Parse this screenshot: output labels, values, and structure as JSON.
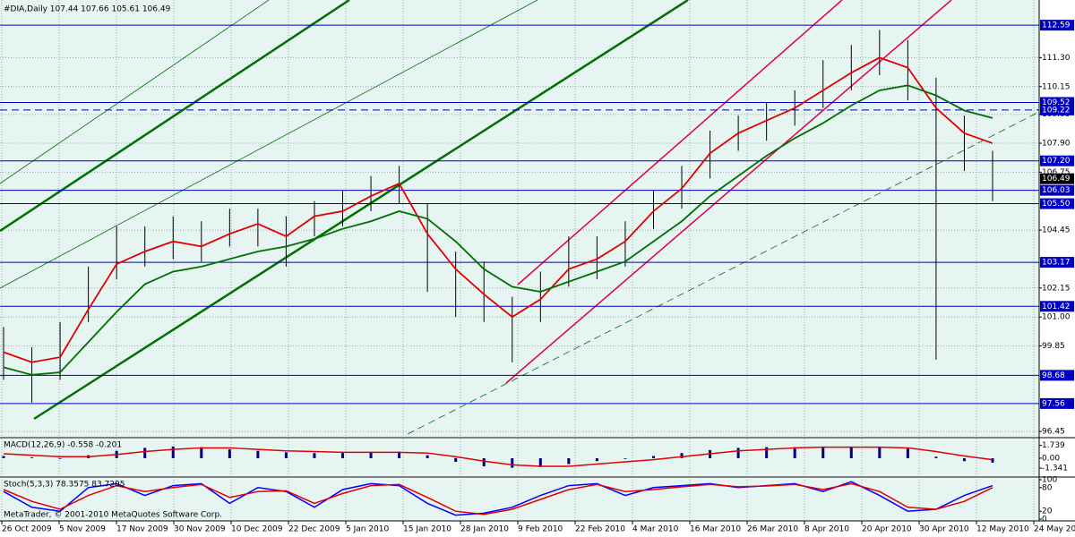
{
  "window": {
    "title": "#DIA,Daily  107.44 107.66 105.61 106.49",
    "copyright": "MetaTrader, © 2001-2010 MetaQuotes Software Corp."
  },
  "chart_data": [
    {
      "type": "ohlc",
      "ylim": [
        96.24,
        113.59
      ],
      "yticks": [
        96.45,
        99.85,
        {
          "value": 101,
          "label": "101.00"
        },
        102.15,
        104.45,
        106.75,
        {
          "value": 107.9,
          "label": "107.90"
        },
        109.05,
        110.15,
        {
          "value": 111.3,
          "label": "111.30"
        }
      ],
      "grid": true,
      "x_labels": [
        "26 Oct 2009",
        "5 Nov 2009",
        "17 Nov 2009",
        "30 Nov 2009",
        "10 Dec 2009",
        "22 Dec 2009",
        "5 Jan 2010",
        "15 Jan 2010",
        "28 Jan 2010",
        "9 Feb 2010",
        "22 Feb 2010",
        "4 Mar 2010",
        "16 Mar 2010",
        "26 Mar 2010",
        "8 Apr 2010",
        "20 Apr 2010",
        "30 Apr 2010",
        "12 May 2010",
        "24 May 2010"
      ],
      "bar_color": "#000000",
      "high": [
        100.6,
        99.8,
        100.8,
        103.0,
        104.6,
        104.6,
        105.0,
        104.8,
        105.3,
        105.3,
        105.0,
        105.6,
        106.0,
        106.6,
        107.0,
        105.5,
        103.6,
        103.2,
        101.8,
        102.8,
        104.2,
        104.2,
        104.8,
        106.0,
        107.0,
        108.4,
        109.0,
        109.5,
        110.0,
        111.2,
        111.8,
        112.4,
        112.0,
        110.5,
        109.0,
        107.6
      ],
      "low": [
        98.5,
        97.6,
        98.5,
        100.8,
        102.5,
        103.0,
        103.3,
        103.2,
        103.8,
        103.8,
        103.0,
        104.2,
        104.6,
        105.2,
        105.5,
        102.0,
        101.0,
        100.8,
        99.2,
        100.8,
        102.2,
        102.5,
        103.0,
        104.5,
        105.3,
        106.5,
        107.6,
        108.0,
        108.6,
        109.3,
        110.0,
        110.6,
        109.6,
        99.3,
        106.8,
        105.6
      ],
      "series": [
        {
          "color": "#e00000",
          "values": [
            99.6,
            99.2,
            99.4,
            101.3,
            103.1,
            103.6,
            104.0,
            103.8,
            104.3,
            104.7,
            104.2,
            105.0,
            105.2,
            105.8,
            106.3,
            104.3,
            102.9,
            101.9,
            101.0,
            101.7,
            102.9,
            103.3,
            104.0,
            105.2,
            106.1,
            107.5,
            108.3,
            108.8,
            109.3,
            110.0,
            110.7,
            111.3,
            110.9,
            109.3,
            108.3,
            107.9
          ]
        },
        {
          "color": "#007000",
          "values": [
            99.0,
            98.7,
            98.8,
            100.0,
            101.2,
            102.3,
            102.8,
            103.0,
            103.3,
            103.6,
            103.8,
            104.1,
            104.5,
            104.8,
            105.2,
            104.9,
            104.0,
            102.9,
            102.2,
            102.0,
            102.4,
            102.8,
            103.2,
            104.0,
            104.8,
            105.8,
            106.6,
            107.4,
            108.1,
            108.7,
            109.4,
            110.0,
            110.2,
            109.8,
            109.2,
            108.9
          ]
        }
      ],
      "level_color": "#0000c0",
      "levels": [
        112.59,
        109.52,
        {
          "value": 107.2,
          "label": "107.20"
        },
        106.03,
        {
          "value": 105.5,
          "label": "105.50"
        },
        103.17,
        101.42,
        98.68,
        97.56
      ],
      "dashed_level": 109.22,
      "last_price": 106.49
    },
    {
      "type": "macd",
      "title": "MACD(12,26,9) -0.558 -0.201",
      "ylim": [
        -2.44,
        2.67
      ],
      "yticks": [
        1.739,
        {
          "value": 0,
          "label": "0.00"
        },
        -1.341
      ],
      "color": "#000080",
      "values": [
        0.3,
        0.1,
        -0.1,
        0.4,
        1.0,
        1.4,
        1.6,
        1.5,
        1.2,
        1.0,
        0.8,
        0.7,
        0.7,
        0.8,
        0.9,
        0.4,
        -0.5,
        -1.1,
        -1.3,
        -1.2,
        -0.8,
        -0.4,
        -0.1,
        0.3,
        0.7,
        1.1,
        1.4,
        1.5,
        1.5,
        1.5,
        1.5,
        1.5,
        1.3,
        0.2,
        -0.4,
        -0.6
      ],
      "signal": {
        "color": "#e00000",
        "values": [
          0.6,
          0.4,
          0.2,
          0.2,
          0.5,
          0.9,
          1.2,
          1.4,
          1.4,
          1.2,
          1.0,
          0.9,
          0.8,
          0.8,
          0.8,
          0.7,
          0.2,
          -0.4,
          -0.9,
          -1.1,
          -1.1,
          -0.8,
          -0.5,
          -0.2,
          0.2,
          0.6,
          1.0,
          1.2,
          1.4,
          1.5,
          1.5,
          1.5,
          1.4,
          0.9,
          0.3,
          -0.2
        ]
      }
    },
    {
      "type": "stochastic",
      "title": "Stoch(5,3,3) 78.3575 83.7205",
      "ylim": [
        0,
        100
      ],
      "yticks": [
        100,
        80,
        20,
        0
      ],
      "series": [
        {
          "color": "#0000ff",
          "values": [
            70,
            30,
            20,
            80,
            90,
            60,
            85,
            90,
            40,
            80,
            70,
            30,
            75,
            90,
            85,
            40,
            10,
            15,
            30,
            60,
            85,
            90,
            60,
            80,
            85,
            90,
            80,
            85,
            90,
            70,
            95,
            60,
            20,
            25,
            60,
            85
          ]
        },
        {
          "color": "#e00000",
          "values": [
            75,
            45,
            25,
            60,
            85,
            70,
            80,
            88,
            55,
            70,
            72,
            40,
            65,
            85,
            88,
            55,
            20,
            12,
            25,
            50,
            75,
            88,
            70,
            75,
            82,
            88,
            82,
            84,
            88,
            75,
            90,
            70,
            30,
            25,
            45,
            80
          ]
        }
      ]
    }
  ]
}
